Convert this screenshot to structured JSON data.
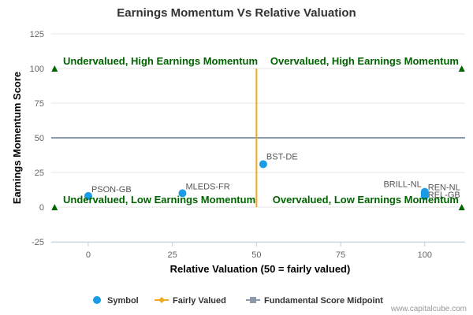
{
  "chart_data": {
    "type": "scatter",
    "title": "Earnings Momentum Vs Relative Valuation",
    "xlabel": "Relative Valuation (50 = fairly valued)",
    "ylabel": "Earnings Momentum Score",
    "xlim": [
      -11,
      112
    ],
    "ylim": [
      -25,
      125
    ],
    "x_ticks": [
      0,
      25,
      50,
      75,
      100
    ],
    "y_ticks": [
      -25,
      0,
      25,
      50,
      75,
      100,
      125
    ],
    "grid": "horizontal",
    "legend_position": "bottom",
    "series": [
      {
        "name": "Symbol",
        "color": "#1a9be6",
        "points": [
          {
            "label": "PSON-GB",
            "x": 0,
            "y": 8
          },
          {
            "label": "MLEDS-FR",
            "x": 28,
            "y": 10
          },
          {
            "label": "BST-DE",
            "x": 52,
            "y": 31
          },
          {
            "label": "BRILL-NL",
            "x": 100,
            "y": 11
          },
          {
            "label": "REN-NL",
            "x": 100,
            "y": 10
          },
          {
            "label": "REL-GB",
            "x": 100,
            "y": 8
          }
        ]
      },
      {
        "name": "Fairly Valued",
        "color": "#f5a623",
        "x": 50,
        "y_range": [
          0,
          100
        ]
      },
      {
        "name": "Fundamental Score Midpoint",
        "color": "#8a9aab",
        "y": 50
      }
    ],
    "quadrant_labels": [
      "Undervalued, High Earnings Momentum",
      "Overvalued, High Earnings Momentum",
      "Undervalued, Low Earnings Momentum",
      "Overvalued, Low Earnings Momentum"
    ],
    "quadrant_label_color": "#006400",
    "corner_markers": [
      {
        "x": -10,
        "y": 100
      },
      {
        "x": 111,
        "y": 100
      },
      {
        "x": -10,
        "y": 0
      },
      {
        "x": 111,
        "y": 0
      }
    ],
    "corner_marker_color": "#006400"
  },
  "credit": "www.capitalcube.com"
}
